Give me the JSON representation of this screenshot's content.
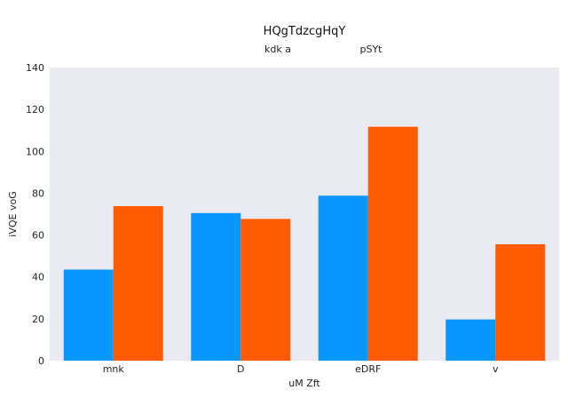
{
  "chart_data": {
    "type": "bar",
    "title": "HQgTdzcgHqY",
    "xlabel": "uM Zft",
    "ylabel": "iVQE voG",
    "categories": [
      "mnk",
      "D",
      "eDRF",
      "v"
    ],
    "series": [
      {
        "name": "kdk a",
        "color": "#0a96ff",
        "values": [
          43.5,
          70.5,
          78.8,
          19.7
        ]
      },
      {
        "name": "pSYt",
        "color": "#ff5a00",
        "values": [
          73.8,
          67.7,
          111.7,
          55.6
        ]
      }
    ],
    "ylim": [
      0,
      140
    ],
    "yticks": [
      0,
      20,
      40,
      60,
      80,
      100,
      120,
      140
    ],
    "grid": false,
    "legend_position": "top",
    "plot_background": "#eaeaf2"
  }
}
